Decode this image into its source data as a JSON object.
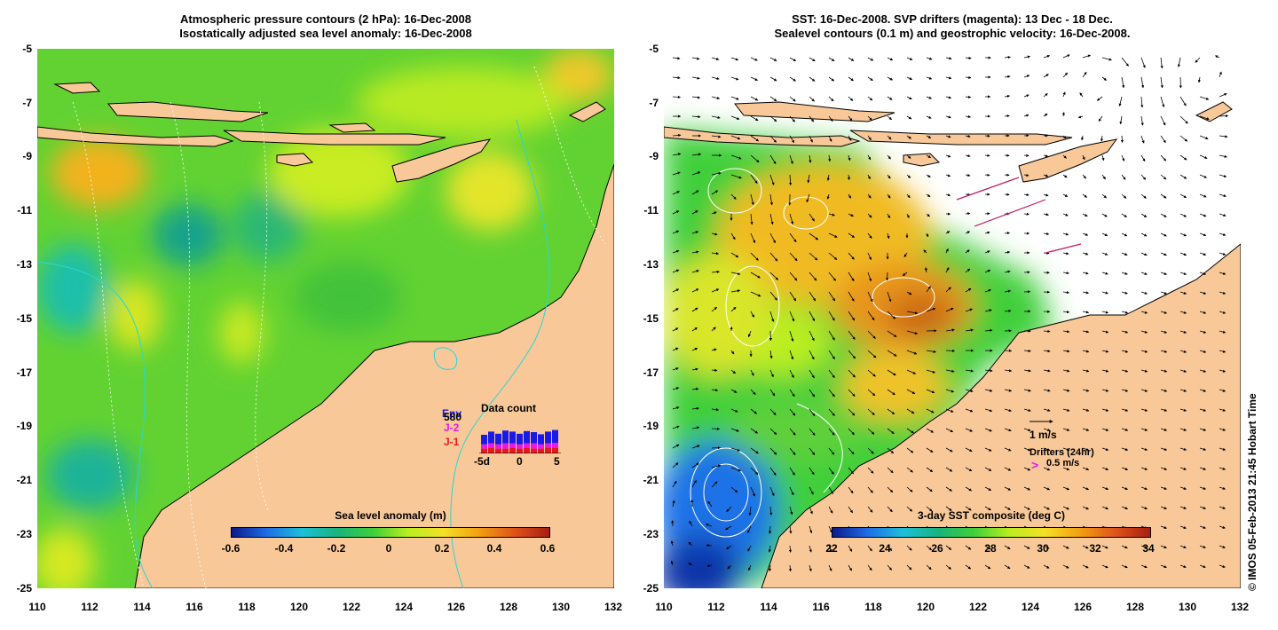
{
  "left_panel": {
    "title_line1": "Atmospheric pressure contours (2 hPa): 16-Dec-2008",
    "title_line2": "Isostatically adjusted sea level anomaly: 16-Dec-2008",
    "colorbar": {
      "title": "Sea level anomaly (m)",
      "ticks": [
        "-0.6",
        "-0.4",
        "-0.2",
        "0",
        "0.2",
        "0.4",
        "0.6"
      ],
      "colors": [
        "#0a1a8a",
        "#1e6ee6",
        "#1fbfd9",
        "#19b37d",
        "#3fcf3a",
        "#b9ee20",
        "#f5e028",
        "#f2a012",
        "#e0541a",
        "#a61e12"
      ]
    },
    "data_count": {
      "title": "Data count",
      "labels": {
        "env": "Env",
        "j2": "J-2",
        "j1": "J-1",
        "number": "580"
      },
      "axis_ticks": [
        "-5d",
        "0",
        "5"
      ],
      "colors": {
        "env": "#1a1ae6",
        "j2": "#e61ae6",
        "j1": "#e61a1a"
      }
    }
  },
  "right_panel": {
    "title_line1": "SST: 16-Dec-2008. SVP drifters (magenta): 13 Dec - 18 Dec.",
    "title_line2": "Sealevel contours (0.1 m) and geostrophic velocity: 16-Dec-2008.",
    "colorbar": {
      "title": "3-day SST composite (deg C)",
      "ticks": [
        "22",
        "24",
        "26",
        "28",
        "30",
        "32",
        "34"
      ],
      "colors": [
        "#0a1a8a",
        "#1e6ee6",
        "#1fbfd9",
        "#19b37d",
        "#3fcf3a",
        "#b9ee20",
        "#f5e028",
        "#f2a012",
        "#e0541a",
        "#a61e12"
      ]
    },
    "velocity_legend": {
      "scale_label": "1 m/s"
    },
    "drifters_legend": {
      "title": "Drifters (24hr)",
      "marker": ">",
      "speed_label": "0.5 m/s"
    }
  },
  "axes": {
    "latitude_ticks": [
      "-5",
      "-7",
      "-9",
      "-11",
      "-13",
      "-15",
      "-17",
      "-19",
      "-21",
      "-23",
      "-25"
    ],
    "longitude_ticks": [
      "110",
      "112",
      "114",
      "116",
      "118",
      "120",
      "122",
      "124",
      "126",
      "128",
      "130",
      "132"
    ],
    "lat_range": [
      -25,
      -5
    ],
    "lon_range": [
      110,
      132
    ]
  },
  "credit": "© IMOS 05-Feb-2013 21:45 Hobart Time",
  "colors": {
    "land": "#f8c898",
    "ocean_base": "#56d62a",
    "sst_warm": "#f5b82a",
    "sst_cold": "#1a72e6"
  }
}
